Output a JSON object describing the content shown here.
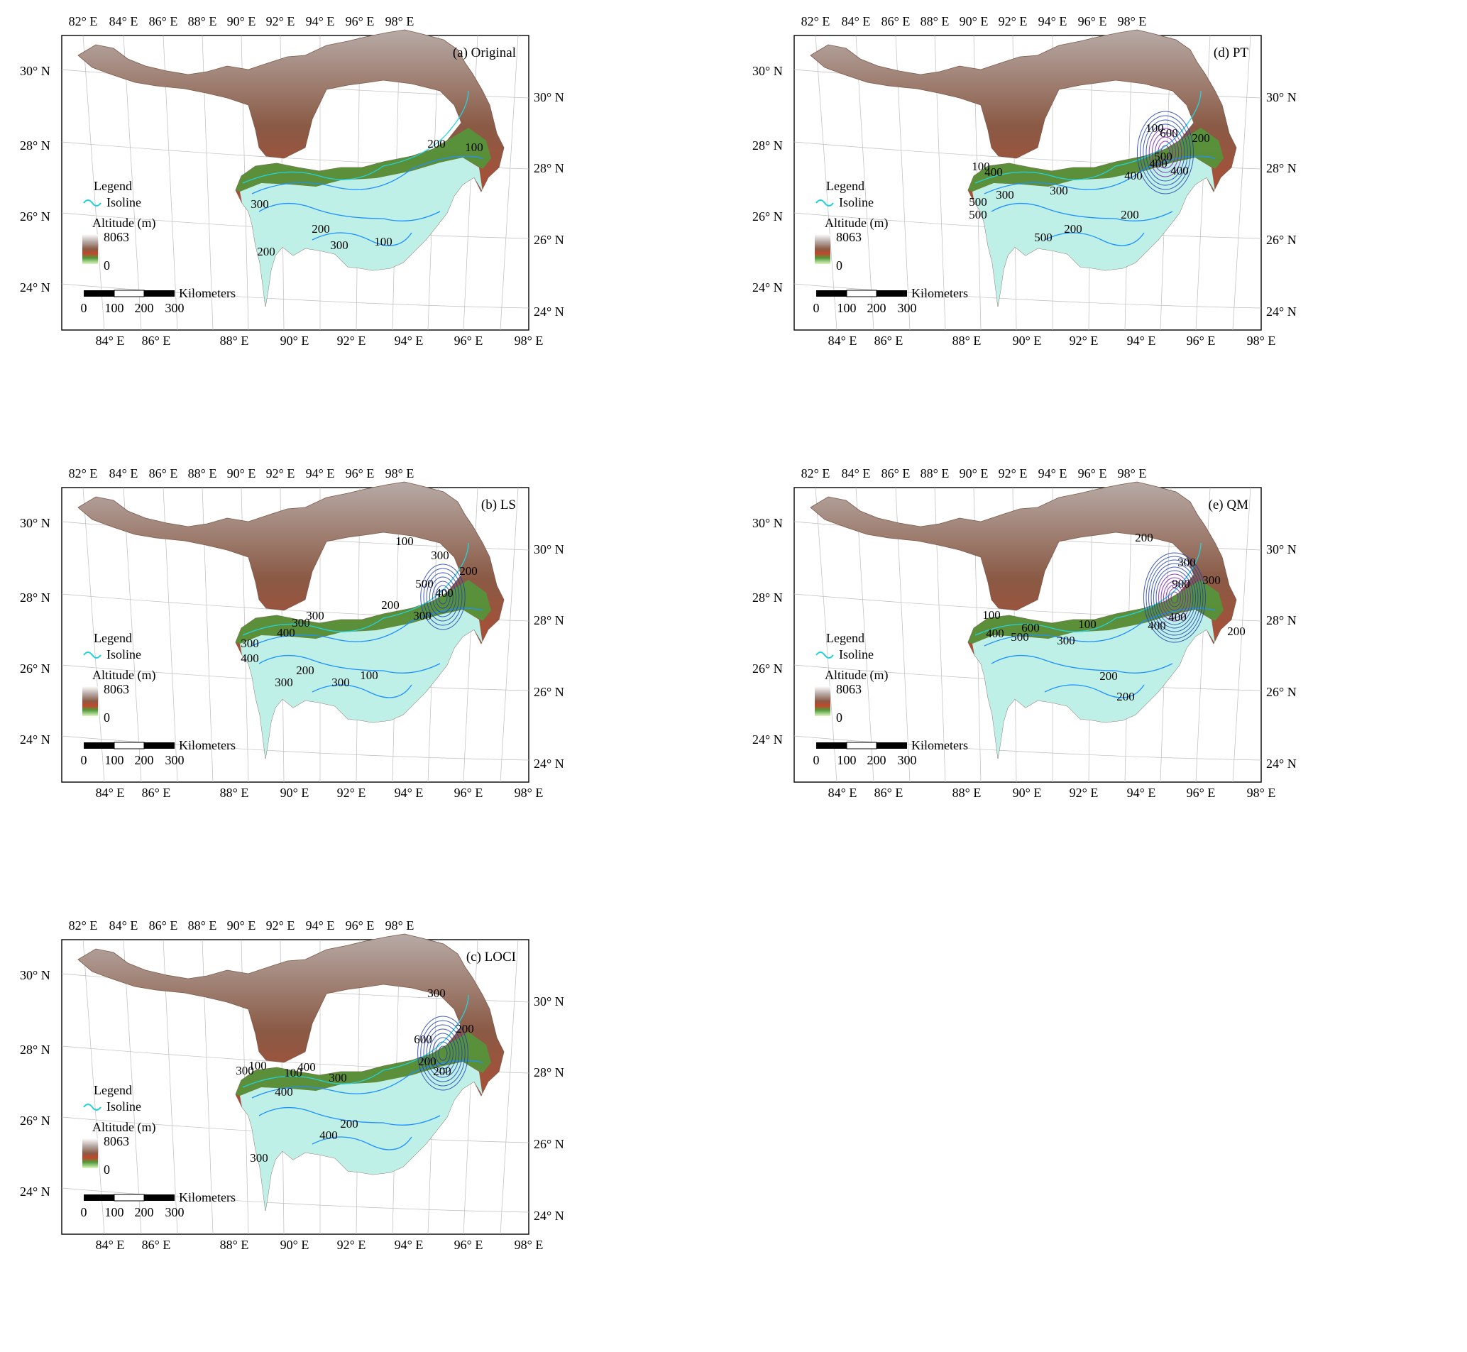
{
  "figure": {
    "panels": [
      {
        "id": "a",
        "title": "(a) Original",
        "contour_labels": [
          "200",
          "100",
          "300",
          "200",
          "300",
          "100",
          "200"
        ]
      },
      {
        "id": "d",
        "title": "(d) PT",
        "contour_labels": [
          "100",
          "200",
          "300",
          "600",
          "400",
          "500",
          "100",
          "400",
          "400",
          "300",
          "500",
          "500",
          "500",
          "200",
          "200",
          "400"
        ]
      },
      {
        "id": "b",
        "title": "(b) LS",
        "contour_labels": [
          "100",
          "300",
          "500",
          "200",
          "400",
          "200",
          "300",
          "300",
          "400",
          "300",
          "300",
          "400",
          "300",
          "300",
          "100",
          "200"
        ]
      },
      {
        "id": "e",
        "title": "(e) QM",
        "contour_labels": [
          "200",
          "300",
          "900",
          "300",
          "400",
          "100",
          "400",
          "500",
          "600",
          "300",
          "100",
          "200",
          "400",
          "200",
          "200"
        ]
      },
      {
        "id": "c",
        "title": "(c) LOCI",
        "contour_labels": [
          "300",
          "200",
          "600",
          "300",
          "100",
          "100",
          "400",
          "400",
          "300",
          "200",
          "200",
          "200",
          "400",
          "300"
        ]
      }
    ],
    "top_ticks": [
      "82° E",
      "84° E",
      "86° E",
      "88° E",
      "90° E",
      "92° E",
      "94° E",
      "96° E",
      "98° E"
    ],
    "bottom_ticks": [
      "84° E",
      "86° E",
      "88° E",
      "90° E",
      "92° E",
      "94° E",
      "96° E",
      "98° E"
    ],
    "left_ticks": [
      "30° N",
      "28° N",
      "26° N",
      "24° N"
    ],
    "right_ticks": [
      "30° N",
      "28° N",
      "26° N",
      "24° N"
    ],
    "legend": {
      "title": "Legend",
      "isoline_label": "Isoline",
      "altitude_title": "Altitude (m)",
      "altitude_max": "8063",
      "altitude_min": "0"
    },
    "scalebar": {
      "unit": "Kilometers",
      "ticks": [
        "0",
        "100",
        "200",
        "300"
      ]
    },
    "colors": {
      "isoline": "#22d3dd",
      "contour_low": "#1e90ff",
      "contour_mid": "#1f3fb0",
      "contour_high": "#7a1fb0",
      "terrain_high": "#8a5a45",
      "terrain_peak": "#b7aaa6",
      "terrain_mid": "#c2462b",
      "terrain_green": "#4f9a3a",
      "lowland": "#bff0e8"
    }
  }
}
